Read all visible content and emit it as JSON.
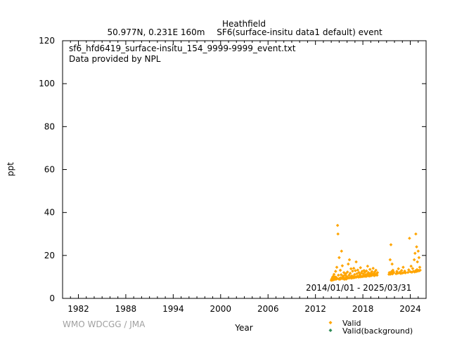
{
  "header": {
    "site": "Heathfield",
    "location": "50.977N, 0.231E 160m",
    "dataset": "SF6(surface-insitu data1 default) event"
  },
  "annotations": {
    "filename": "sf6_hfd6419_surface-insitu_154_9999-9999_event.txt",
    "provider": "Data provided by NPL",
    "period": "2014/01/01 - 2025/03/31",
    "credit": "WMO WDCGG / JMA"
  },
  "chart_data": {
    "type": "scatter",
    "xlabel": "Year",
    "ylabel": "ppt",
    "xlim": [
      1980,
      2026
    ],
    "ylim": [
      0,
      120
    ],
    "x_ticks": [
      1982,
      1988,
      1994,
      2000,
      2006,
      2012,
      2018,
      2024
    ],
    "y_ticks": [
      0,
      20,
      40,
      60,
      80,
      100,
      120
    ],
    "grid": false,
    "legend_position": "bottom-right",
    "colors": {
      "valid": "#ffa500",
      "valid_background": "#2e8b57"
    },
    "series": [
      {
        "name": "Valid",
        "marker": "diamond",
        "color": "#ffa500",
        "points": [
          [
            2014.0,
            8.4
          ],
          [
            2014.05,
            9.0
          ],
          [
            2014.1,
            8.7
          ],
          [
            2014.15,
            9.8
          ],
          [
            2014.2,
            8.5
          ],
          [
            2014.25,
            10.3
          ],
          [
            2014.3,
            9.1
          ],
          [
            2014.35,
            11.2
          ],
          [
            2014.4,
            8.8
          ],
          [
            2014.45,
            9.4
          ],
          [
            2014.5,
            10.0
          ],
          [
            2014.55,
            12.6
          ],
          [
            2014.6,
            8.9
          ],
          [
            2014.65,
            9.7
          ],
          [
            2014.7,
            14.5
          ],
          [
            2014.75,
            9.2
          ],
          [
            2014.8,
            34.0
          ],
          [
            2014.85,
            30.0
          ],
          [
            2014.9,
            10.8
          ],
          [
            2014.95,
            9.0
          ],
          [
            2015.0,
            19.0
          ],
          [
            2015.05,
            9.3
          ],
          [
            2015.1,
            8.9
          ],
          [
            2015.15,
            13.1
          ],
          [
            2015.2,
            9.6
          ],
          [
            2015.25,
            11.0
          ],
          [
            2015.3,
            22.0
          ],
          [
            2015.35,
            9.2
          ],
          [
            2015.4,
            15.2
          ],
          [
            2015.45,
            9.8
          ],
          [
            2015.5,
            10.4
          ],
          [
            2015.55,
            9.1
          ],
          [
            2015.6,
            12.0
          ],
          [
            2015.65,
            9.5
          ],
          [
            2015.7,
            8.9
          ],
          [
            2015.75,
            10.9
          ],
          [
            2015.8,
            9.4
          ],
          [
            2015.85,
            11.5
          ],
          [
            2015.9,
            9.0
          ],
          [
            2015.95,
            10.2
          ],
          [
            2016.0,
            9.3
          ],
          [
            2016.05,
            12.3
          ],
          [
            2016.1,
            9.7
          ],
          [
            2016.15,
            16.0
          ],
          [
            2016.2,
            9.5
          ],
          [
            2016.25,
            10.8
          ],
          [
            2016.3,
            18.0
          ],
          [
            2016.35,
            9.6
          ],
          [
            2016.4,
            11.7
          ],
          [
            2016.45,
            9.9
          ],
          [
            2016.5,
            13.8
          ],
          [
            2016.55,
            9.4
          ],
          [
            2016.6,
            10.5
          ],
          [
            2016.65,
            9.8
          ],
          [
            2016.7,
            12.7
          ],
          [
            2016.75,
            9.6
          ],
          [
            2016.8,
            10.1
          ],
          [
            2016.85,
            14.0
          ],
          [
            2016.9,
            9.7
          ],
          [
            2016.95,
            11.1
          ],
          [
            2017.0,
            9.8
          ],
          [
            2017.05,
            12.9
          ],
          [
            2017.1,
            10.0
          ],
          [
            2017.15,
            17.0
          ],
          [
            2017.2,
            9.9
          ],
          [
            2017.25,
            11.5
          ],
          [
            2017.3,
            10.3
          ],
          [
            2017.35,
            13.2
          ],
          [
            2017.4,
            10.1
          ],
          [
            2017.45,
            9.9
          ],
          [
            2017.5,
            12.1
          ],
          [
            2017.55,
            10.2
          ],
          [
            2017.6,
            11.0
          ],
          [
            2017.65,
            10.0
          ],
          [
            2017.7,
            14.3
          ],
          [
            2017.75,
            10.4
          ],
          [
            2017.8,
            11.8
          ],
          [
            2017.85,
            10.1
          ],
          [
            2017.9,
            12.6
          ],
          [
            2017.95,
            10.3
          ],
          [
            2018.0,
            10.2
          ],
          [
            2018.05,
            11.4
          ],
          [
            2018.1,
            10.4
          ],
          [
            2018.15,
            13.0
          ],
          [
            2018.2,
            10.3
          ],
          [
            2018.25,
            12.2
          ],
          [
            2018.3,
            10.5
          ],
          [
            2018.35,
            11.0
          ],
          [
            2018.4,
            10.2
          ],
          [
            2018.45,
            12.8
          ],
          [
            2018.5,
            10.6
          ],
          [
            2018.55,
            11.3
          ],
          [
            2018.6,
            15.0
          ],
          [
            2018.65,
            10.5
          ],
          [
            2018.7,
            12.0
          ],
          [
            2018.75,
            10.7
          ],
          [
            2018.8,
            11.6
          ],
          [
            2018.85,
            10.4
          ],
          [
            2018.9,
            13.5
          ],
          [
            2018.95,
            10.8
          ],
          [
            2019.0,
            10.6
          ],
          [
            2019.05,
            11.9
          ],
          [
            2019.1,
            10.7
          ],
          [
            2019.15,
            12.5
          ],
          [
            2019.2,
            10.9
          ],
          [
            2019.25,
            11.2
          ],
          [
            2019.3,
            14.0
          ],
          [
            2019.35,
            10.8
          ],
          [
            2019.4,
            11.7
          ],
          [
            2019.45,
            10.6
          ],
          [
            2019.5,
            12.3
          ],
          [
            2019.55,
            11.0
          ],
          [
            2019.6,
            10.9
          ],
          [
            2019.65,
            13.1
          ],
          [
            2019.7,
            11.1
          ],
          [
            2019.75,
            11.5
          ],
          [
            2019.8,
            10.8
          ],
          [
            2019.85,
            12.0
          ],
          [
            2021.3,
            11.2
          ],
          [
            2021.35,
            12.0
          ],
          [
            2021.4,
            11.5
          ],
          [
            2021.45,
            18.0
          ],
          [
            2021.5,
            11.3
          ],
          [
            2021.55,
            25.0
          ],
          [
            2021.6,
            12.4
          ],
          [
            2021.65,
            11.6
          ],
          [
            2021.7,
            16.0
          ],
          [
            2021.75,
            11.4
          ],
          [
            2021.8,
            13.1
          ],
          [
            2021.85,
            11.8
          ],
          [
            2021.9,
            12.2
          ],
          [
            2022.2,
            11.5
          ],
          [
            2022.3,
            12.6
          ],
          [
            2022.4,
            11.7
          ],
          [
            2022.5,
            13.8
          ],
          [
            2022.6,
            11.9
          ],
          [
            2022.7,
            12.2
          ],
          [
            2022.8,
            11.6
          ],
          [
            2022.9,
            13.0
          ],
          [
            2023.0,
            11.8
          ],
          [
            2023.1,
            14.5
          ],
          [
            2023.2,
            12.0
          ],
          [
            2023.3,
            12.7
          ],
          [
            2023.4,
            11.9
          ],
          [
            2023.7,
            12.1
          ],
          [
            2023.8,
            13.3
          ],
          [
            2023.9,
            28.0
          ],
          [
            2024.0,
            12.4
          ],
          [
            2024.1,
            15.0
          ],
          [
            2024.2,
            12.2
          ],
          [
            2024.3,
            13.9
          ],
          [
            2024.4,
            12.6
          ],
          [
            2024.5,
            18.0
          ],
          [
            2024.55,
            12.3
          ],
          [
            2024.6,
            21.0
          ],
          [
            2024.65,
            12.8
          ],
          [
            2024.7,
            30.0
          ],
          [
            2024.75,
            12.5
          ],
          [
            2024.8,
            24.0
          ],
          [
            2024.85,
            13.4
          ],
          [
            2024.9,
            17.0
          ],
          [
            2024.95,
            12.7
          ],
          [
            2025.0,
            22.0
          ],
          [
            2025.05,
            13.0
          ],
          [
            2025.1,
            19.0
          ],
          [
            2025.15,
            12.9
          ],
          [
            2025.2,
            14.5
          ],
          [
            2025.25,
            13.1
          ]
        ]
      },
      {
        "name": "Valid(background)",
        "marker": "diamond",
        "color": "#2e8b57",
        "points": []
      }
    ]
  }
}
